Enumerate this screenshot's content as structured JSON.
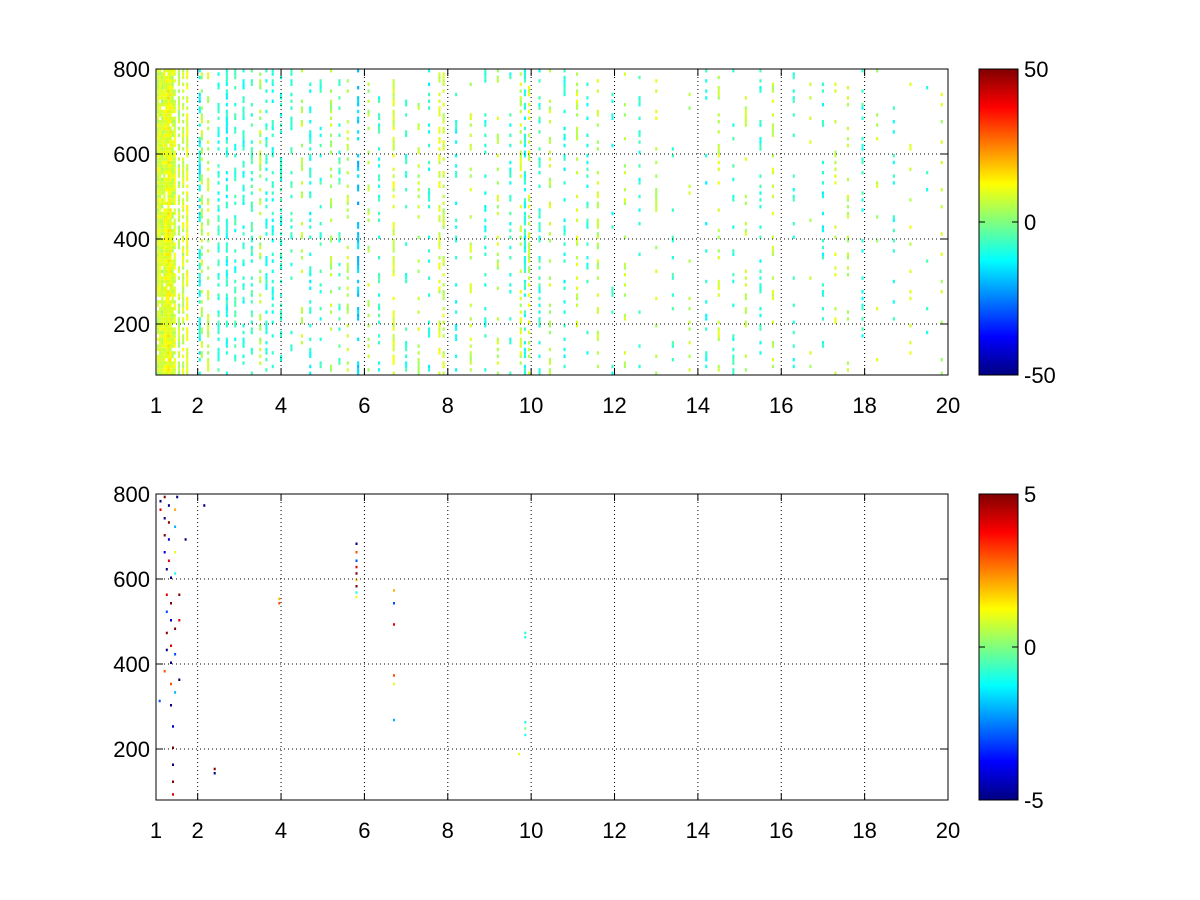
{
  "chart_data": [
    {
      "type": "heatmap",
      "title": "",
      "xlabel": "",
      "ylabel": "",
      "xlim": [
        1,
        20
      ],
      "ylim": [
        80,
        800
      ],
      "x_ticks": [
        1,
        2,
        4,
        6,
        8,
        10,
        12,
        14,
        16,
        18,
        20
      ],
      "x_tick_labels": [
        "1",
        "2",
        "4",
        "6",
        "8",
        "10",
        "12",
        "14",
        "16",
        "18",
        "20"
      ],
      "y_ticks": [
        200,
        400,
        600,
        800
      ],
      "y_tick_labels": [
        "200",
        "400",
        "600",
        "800"
      ],
      "grid": true,
      "background": "#ffffff",
      "colormap": "jet",
      "clim": [
        -50,
        50
      ],
      "colorbar_ticks": [
        -50,
        0,
        50
      ],
      "colorbar_tick_labels": [
        "-50",
        "0",
        "50"
      ],
      "colorbar_position": "right",
      "column_width": 0.05,
      "row_height": 8,
      "stripes": [
        {
          "x": 1.05,
          "value": 8,
          "density": 0.95
        },
        {
          "x": 1.1,
          "value": 9,
          "density": 0.95
        },
        {
          "x": 1.15,
          "value": 6,
          "density": 0.85
        },
        {
          "x": 1.2,
          "value": 10,
          "density": 0.95
        },
        {
          "x": 1.25,
          "value": 10,
          "density": 0.95
        },
        {
          "x": 1.3,
          "value": 12,
          "density": 0.95
        },
        {
          "x": 1.35,
          "value": 11,
          "density": 0.95
        },
        {
          "x": 1.4,
          "value": 7,
          "density": 0.8
        },
        {
          "x": 1.45,
          "value": 9,
          "density": 0.8
        },
        {
          "x": 1.55,
          "value": 6,
          "density": 0.7
        },
        {
          "x": 1.65,
          "value": 8,
          "density": 0.7
        },
        {
          "x": 1.75,
          "value": 10,
          "density": 0.8
        },
        {
          "x": 2.05,
          "value": -12,
          "density": 0.55
        },
        {
          "x": 2.1,
          "value": 5,
          "density": 0.5
        },
        {
          "x": 2.25,
          "value": 6,
          "density": 0.45
        },
        {
          "x": 2.5,
          "value": -8,
          "density": 0.45
        },
        {
          "x": 2.7,
          "value": -10,
          "density": 0.5
        },
        {
          "x": 2.9,
          "value": -8,
          "density": 0.45
        },
        {
          "x": 3.1,
          "value": -10,
          "density": 0.45
        },
        {
          "x": 3.3,
          "value": -6,
          "density": 0.45
        },
        {
          "x": 3.5,
          "value": 5,
          "density": 0.4
        },
        {
          "x": 3.65,
          "value": -9,
          "density": 0.45
        },
        {
          "x": 3.8,
          "value": -10,
          "density": 0.5
        },
        {
          "x": 4.0,
          "value": -8,
          "density": 0.4
        },
        {
          "x": 4.25,
          "value": -7,
          "density": 0.35
        },
        {
          "x": 4.5,
          "value": 6,
          "density": 0.35
        },
        {
          "x": 4.7,
          "value": -10,
          "density": 0.4
        },
        {
          "x": 4.95,
          "value": -8,
          "density": 0.35
        },
        {
          "x": 5.2,
          "value": 5,
          "density": 0.35
        },
        {
          "x": 5.4,
          "value": -6,
          "density": 0.3
        },
        {
          "x": 5.6,
          "value": 6,
          "density": 0.35
        },
        {
          "x": 5.85,
          "value": -18,
          "density": 0.5
        },
        {
          "x": 6.1,
          "value": 5,
          "density": 0.3
        },
        {
          "x": 6.35,
          "value": -8,
          "density": 0.3
        },
        {
          "x": 6.7,
          "value": 9,
          "density": 0.55
        },
        {
          "x": 7.0,
          "value": -8,
          "density": 0.25
        },
        {
          "x": 7.3,
          "value": 6,
          "density": 0.3
        },
        {
          "x": 7.55,
          "value": -10,
          "density": 0.25
        },
        {
          "x": 7.8,
          "value": 9,
          "density": 0.55
        },
        {
          "x": 7.9,
          "value": 7,
          "density": 0.45
        },
        {
          "x": 8.2,
          "value": -10,
          "density": 0.3
        },
        {
          "x": 8.55,
          "value": 6,
          "density": 0.3
        },
        {
          "x": 8.9,
          "value": -9,
          "density": 0.3
        },
        {
          "x": 9.2,
          "value": 6,
          "density": 0.3
        },
        {
          "x": 9.5,
          "value": -8,
          "density": 0.3
        },
        {
          "x": 9.75,
          "value": 7,
          "density": 0.5
        },
        {
          "x": 9.85,
          "value": -9,
          "density": 0.55
        },
        {
          "x": 9.95,
          "value": 8,
          "density": 0.5
        },
        {
          "x": 10.2,
          "value": -8,
          "density": 0.3
        },
        {
          "x": 10.45,
          "value": 6,
          "density": 0.3
        },
        {
          "x": 10.8,
          "value": -10,
          "density": 0.28
        },
        {
          "x": 11.1,
          "value": 8,
          "density": 0.35
        },
        {
          "x": 11.35,
          "value": -8,
          "density": 0.25
        },
        {
          "x": 11.6,
          "value": 6,
          "density": 0.35
        },
        {
          "x": 11.95,
          "value": -10,
          "density": 0.2
        },
        {
          "x": 12.25,
          "value": 6,
          "density": 0.22
        },
        {
          "x": 12.6,
          "value": -9,
          "density": 0.2
        },
        {
          "x": 13.0,
          "value": 7,
          "density": 0.2
        },
        {
          "x": 13.4,
          "value": -8,
          "density": 0.18
        },
        {
          "x": 13.8,
          "value": 6,
          "density": 0.18
        },
        {
          "x": 14.2,
          "value": -10,
          "density": 0.2
        },
        {
          "x": 14.5,
          "value": 7,
          "density": 0.3
        },
        {
          "x": 14.85,
          "value": -8,
          "density": 0.25
        },
        {
          "x": 15.15,
          "value": 6,
          "density": 0.28
        },
        {
          "x": 15.5,
          "value": -9,
          "density": 0.3
        },
        {
          "x": 15.8,
          "value": 7,
          "density": 0.2
        },
        {
          "x": 16.3,
          "value": -8,
          "density": 0.18
        },
        {
          "x": 16.7,
          "value": 6,
          "density": 0.18
        },
        {
          "x": 17.0,
          "value": -10,
          "density": 0.3
        },
        {
          "x": 17.3,
          "value": 7,
          "density": 0.2
        },
        {
          "x": 17.6,
          "value": 6,
          "density": 0.3
        },
        {
          "x": 17.95,
          "value": -8,
          "density": 0.15
        },
        {
          "x": 18.3,
          "value": 6,
          "density": 0.15
        },
        {
          "x": 18.7,
          "value": -9,
          "density": 0.15
        },
        {
          "x": 19.1,
          "value": 7,
          "density": 0.15
        },
        {
          "x": 19.5,
          "value": -8,
          "density": 0.12
        },
        {
          "x": 19.85,
          "value": 6,
          "density": 0.12
        }
      ]
    },
    {
      "type": "heatmap",
      "title": "",
      "xlabel": "",
      "ylabel": "",
      "xlim": [
        1,
        20
      ],
      "ylim": [
        80,
        800
      ],
      "x_ticks": [
        1,
        2,
        4,
        6,
        8,
        10,
        12,
        14,
        16,
        18,
        20
      ],
      "x_tick_labels": [
        "1",
        "2",
        "4",
        "6",
        "8",
        "10",
        "12",
        "14",
        "16",
        "18",
        "20"
      ],
      "y_ticks": [
        200,
        400,
        600,
        800
      ],
      "y_tick_labels": [
        "200",
        "400",
        "600",
        "800"
      ],
      "grid": true,
      "background": "#ffffff",
      "colormap": "jet",
      "clim": [
        -5,
        5
      ],
      "colorbar_ticks": [
        -5,
        0,
        5
      ],
      "colorbar_tick_labels": [
        "-5",
        "0",
        "5"
      ],
      "colorbar_position": "right",
      "column_width": 0.03,
      "row_height": 6,
      "cells": [
        {
          "x": 1.1,
          "y": 780,
          "value": -5
        },
        {
          "x": 1.1,
          "y": 760,
          "value": 4
        },
        {
          "x": 1.2,
          "y": 790,
          "value": 5
        },
        {
          "x": 1.2,
          "y": 740,
          "value": -5
        },
        {
          "x": 1.2,
          "y": 700,
          "value": 5
        },
        {
          "x": 1.2,
          "y": 660,
          "value": -4
        },
        {
          "x": 1.25,
          "y": 620,
          "value": -5
        },
        {
          "x": 1.25,
          "y": 560,
          "value": 4
        },
        {
          "x": 1.25,
          "y": 520,
          "value": -3
        },
        {
          "x": 1.25,
          "y": 470,
          "value": 5
        },
        {
          "x": 1.25,
          "y": 430,
          "value": -5
        },
        {
          "x": 1.2,
          "y": 380,
          "value": 3
        },
        {
          "x": 1.3,
          "y": 770,
          "value": -5
        },
        {
          "x": 1.3,
          "y": 730,
          "value": 5
        },
        {
          "x": 1.3,
          "y": 690,
          "value": -4
        },
        {
          "x": 1.3,
          "y": 640,
          "value": 4
        },
        {
          "x": 1.35,
          "y": 600,
          "value": -5
        },
        {
          "x": 1.35,
          "y": 540,
          "value": 5
        },
        {
          "x": 1.35,
          "y": 500,
          "value": -4
        },
        {
          "x": 1.35,
          "y": 440,
          "value": 4
        },
        {
          "x": 1.35,
          "y": 400,
          "value": -5
        },
        {
          "x": 1.35,
          "y": 350,
          "value": 3
        },
        {
          "x": 1.35,
          "y": 300,
          "value": -5
        },
        {
          "x": 1.4,
          "y": 250,
          "value": -4
        },
        {
          "x": 1.4,
          "y": 200,
          "value": 5
        },
        {
          "x": 1.4,
          "y": 160,
          "value": -5
        },
        {
          "x": 1.4,
          "y": 120,
          "value": 5
        },
        {
          "x": 1.4,
          "y": 90,
          "value": 4
        },
        {
          "x": 1.45,
          "y": 760,
          "value": 2
        },
        {
          "x": 1.45,
          "y": 720,
          "value": -2
        },
        {
          "x": 1.45,
          "y": 660,
          "value": 1
        },
        {
          "x": 1.45,
          "y": 610,
          "value": -1
        },
        {
          "x": 1.45,
          "y": 480,
          "value": 5
        },
        {
          "x": 1.45,
          "y": 420,
          "value": -3
        },
        {
          "x": 1.45,
          "y": 330,
          "value": -2
        },
        {
          "x": 1.5,
          "y": 790,
          "value": -5
        },
        {
          "x": 1.55,
          "y": 560,
          "value": 5
        },
        {
          "x": 1.55,
          "y": 500,
          "value": 4
        },
        {
          "x": 1.55,
          "y": 360,
          "value": -5
        },
        {
          "x": 1.7,
          "y": 690,
          "value": -5
        },
        {
          "x": 1.08,
          "y": 310,
          "value": -3
        },
        {
          "x": 2.15,
          "y": 770,
          "value": -5
        },
        {
          "x": 2.4,
          "y": 150,
          "value": 5
        },
        {
          "x": 2.4,
          "y": 140,
          "value": -5
        },
        {
          "x": 3.95,
          "y": 550,
          "value": 2
        },
        {
          "x": 3.95,
          "y": 540,
          "value": 3
        },
        {
          "x": 5.8,
          "y": 680,
          "value": -5
        },
        {
          "x": 5.8,
          "y": 660,
          "value": 3
        },
        {
          "x": 5.8,
          "y": 640,
          "value": -3
        },
        {
          "x": 5.8,
          "y": 625,
          "value": 4
        },
        {
          "x": 5.8,
          "y": 610,
          "value": 5
        },
        {
          "x": 5.8,
          "y": 595,
          "value": 2
        },
        {
          "x": 5.8,
          "y": 580,
          "value": 5
        },
        {
          "x": 5.8,
          "y": 565,
          "value": -1
        },
        {
          "x": 5.8,
          "y": 555,
          "value": 1
        },
        {
          "x": 6.7,
          "y": 570,
          "value": 2
        },
        {
          "x": 6.7,
          "y": 540,
          "value": -3
        },
        {
          "x": 6.7,
          "y": 490,
          "value": 4
        },
        {
          "x": 6.7,
          "y": 370,
          "value": 3
        },
        {
          "x": 6.7,
          "y": 350,
          "value": 1
        },
        {
          "x": 6.7,
          "y": 265,
          "value": -2
        },
        {
          "x": 9.85,
          "y": 470,
          "value": -1
        },
        {
          "x": 9.85,
          "y": 460,
          "value": -1
        },
        {
          "x": 9.85,
          "y": 260,
          "value": -1
        },
        {
          "x": 9.85,
          "y": 245,
          "value": 0
        },
        {
          "x": 9.85,
          "y": 230,
          "value": -1
        },
        {
          "x": 9.7,
          "y": 185,
          "value": 1
        }
      ]
    }
  ]
}
